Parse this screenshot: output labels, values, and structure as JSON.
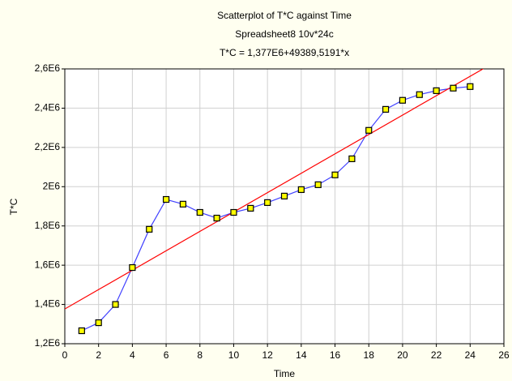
{
  "chart_data": {
    "type": "scatter",
    "title": "Scatterplot of T*C against Time",
    "subtitle": "Spreadsheet8 10v*24c",
    "equation": "T*C = 1,377E6+49389,5191*x",
    "x_label": "Time",
    "y_label": "T*C",
    "x": [
      1,
      2,
      3,
      4,
      5,
      6,
      7,
      8,
      9,
      10,
      11,
      12,
      13,
      14,
      15,
      16,
      17,
      18,
      19,
      20,
      21,
      22,
      23,
      24
    ],
    "series": [
      {
        "color": "#4040ff",
        "marker_color": "#ffff00",
        "values": [
          1266000,
          1307000,
          1400000,
          1588000,
          1783000,
          1935000,
          1911000,
          1869000,
          1840000,
          1869000,
          1890000,
          1919000,
          1952000,
          1985000,
          2010000,
          2060000,
          2142000,
          2287000,
          2394000,
          2440000,
          2469000,
          2489000,
          2502000,
          2510000
        ]
      }
    ],
    "fit": {
      "intercept": 1377000,
      "slope": 49389.5191,
      "color": "#ff0000"
    },
    "xlim": [
      0,
      26
    ],
    "xticks": [
      0,
      2,
      4,
      6,
      8,
      10,
      12,
      14,
      16,
      18,
      20,
      22,
      24,
      26
    ],
    "ylim": [
      1200000,
      2600000
    ],
    "yticks": [
      {
        "value": 1200000,
        "label": "1,2E6"
      },
      {
        "value": 1400000,
        "label": "1,4E6"
      },
      {
        "value": 1600000,
        "label": "1,6E6"
      },
      {
        "value": 1800000,
        "label": "1,8E6"
      },
      {
        "value": 2000000,
        "label": "2E6"
      },
      {
        "value": 2200000,
        "label": "2,2E6"
      },
      {
        "value": 2400000,
        "label": "2,4E6"
      },
      {
        "value": 2600000,
        "label": "2,6E6"
      }
    ],
    "grid": true
  }
}
